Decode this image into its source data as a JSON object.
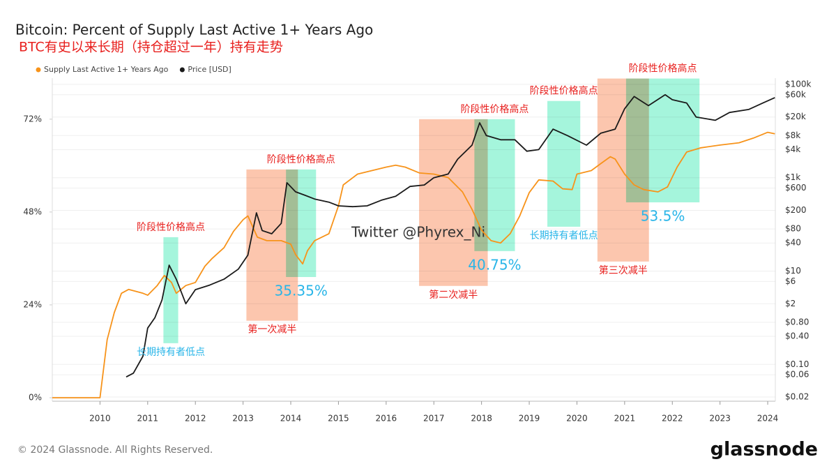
{
  "chart_data": {
    "type": "line",
    "title": "Bitcoin: Percent of Supply Last Active 1+ Years Ago",
    "subtitle": "BTC有史以来长期（持仓超过一年）持有走势",
    "legend": "top-left",
    "grid": true,
    "xlim": [
      2009,
      2024.16
    ],
    "xticks": [
      2010,
      2011,
      2012,
      2013,
      2014,
      2015,
      2016,
      2017,
      2018,
      2019,
      2020,
      2021,
      2022,
      2023,
      2024
    ],
    "ylim": [
      -0.9,
      82.6
    ],
    "yticks": [
      {
        "value": 0,
        "label": "0%"
      },
      {
        "value": 24,
        "label": "24%"
      },
      {
        "value": 48,
        "label": "48%"
      },
      {
        "value": 72,
        "label": "72%"
      }
    ],
    "y2lim": [
      0.0163,
      136000
    ],
    "y2log": true,
    "y2ticks": [
      {
        "value": 0.02,
        "label": "$0.02"
      },
      {
        "value": 0.06,
        "label": "$0.06"
      },
      {
        "value": 0.1,
        "label": "$0.10"
      },
      {
        "value": 0.4,
        "label": "$0.40"
      },
      {
        "value": 0.8,
        "label": "$0.80"
      },
      {
        "value": 2,
        "label": "$2"
      },
      {
        "value": 6,
        "label": "$6"
      },
      {
        "value": 10,
        "label": "$10"
      },
      {
        "value": 40,
        "label": "$40"
      },
      {
        "value": 80,
        "label": "$80"
      },
      {
        "value": 200,
        "label": "$200"
      },
      {
        "value": 600,
        "label": "$600"
      },
      {
        "value": 1000,
        "label": "$1k"
      },
      {
        "value": 4000,
        "label": "$4k"
      },
      {
        "value": 8000,
        "label": "$8k"
      },
      {
        "value": 20000,
        "label": "$20k"
      },
      {
        "value": 60000,
        "label": "$60k"
      },
      {
        "value": 100000,
        "label": "$100k"
      }
    ],
    "series": [
      {
        "name": "Supply Last Active 1+ Years Ago",
        "color": "#f7931a",
        "x": [
          2009,
          2010,
          2010.15,
          2010.3,
          2010.45,
          2010.6,
          2010.9,
          2011,
          2011.2,
          2011.35,
          2011.5,
          2011.6,
          2011.8,
          2012,
          2012.2,
          2012.35,
          2012.6,
          2012.8,
          2013,
          2013.1,
          2013.3,
          2013.5,
          2013.8,
          2014,
          2014.1,
          2014.25,
          2014.35,
          2014.5,
          2014.8,
          2015,
          2015.1,
          2015.4,
          2015.7,
          2016,
          2016.2,
          2016.4,
          2016.7,
          2017,
          2017.3,
          2017.6,
          2017.8,
          2018,
          2018.2,
          2018.4,
          2018.6,
          2018.8,
          2019,
          2019.2,
          2019.5,
          2019.7,
          2019.9,
          2020,
          2020.3,
          2020.5,
          2020.7,
          2020.8,
          2021,
          2021.2,
          2021.4,
          2021.7,
          2021.9,
          2022.1,
          2022.3,
          2022.6,
          2023,
          2023.4,
          2023.7,
          2024,
          2024.15
        ],
        "values": [
          0,
          0,
          15,
          22,
          27,
          28,
          27,
          26.5,
          29,
          31.6,
          29.8,
          27,
          29,
          29.8,
          34,
          36,
          38.8,
          43,
          46,
          47,
          41.5,
          40.6,
          40.6,
          39.7,
          37,
          34.6,
          38,
          40.6,
          42.4,
          49.6,
          55,
          57.8,
          58.7,
          59.6,
          60.1,
          59.6,
          58.1,
          57.8,
          56.9,
          53.2,
          48.7,
          43.3,
          40.6,
          40,
          42.4,
          47,
          53,
          56.3,
          56,
          54,
          53.8,
          57.8,
          58.7,
          60.5,
          62.3,
          61.7,
          57.8,
          55,
          53.8,
          53.2,
          54.5,
          59.6,
          63.5,
          64.6,
          65.3,
          65.9,
          67.1,
          68.6,
          68.2
        ]
      },
      {
        "name": "Price [USD]",
        "color": "#1a1a1a",
        "axis": "y2",
        "x": [
          2010.55,
          2010.7,
          2010.9,
          2011,
          2011.15,
          2011.3,
          2011.45,
          2011.6,
          2011.8,
          2012,
          2012.3,
          2012.6,
          2012.9,
          2013.1,
          2013.28,
          2013.4,
          2013.6,
          2013.8,
          2013.92,
          2014.1,
          2014.3,
          2014.5,
          2014.8,
          2015,
          2015.3,
          2015.6,
          2015.9,
          2016.2,
          2016.5,
          2016.8,
          2017,
          2017.3,
          2017.5,
          2017.8,
          2017.96,
          2018.1,
          2018.4,
          2018.7,
          2018.95,
          2019.2,
          2019.5,
          2019.8,
          2020.2,
          2020.5,
          2020.8,
          2021,
          2021.2,
          2021.5,
          2021.85,
          2022,
          2022.3,
          2022.5,
          2022.9,
          2023.2,
          2023.6,
          2023.9,
          2024.15
        ],
        "values": [
          0.054,
          0.065,
          0.15,
          0.6,
          1,
          2.4,
          13.4,
          6.7,
          2,
          4,
          5,
          6.7,
          11,
          22,
          177,
          74,
          63,
          105,
          780,
          500,
          420,
          350,
          300,
          250,
          240,
          250,
          330,
          400,
          650,
          700,
          1000,
          1200,
          2500,
          5000,
          15000,
          8000,
          6500,
          6500,
          3700,
          4000,
          11000,
          8000,
          5000,
          9000,
          11000,
          30000,
          55000,
          35000,
          60000,
          47000,
          40000,
          20000,
          17000,
          25000,
          29000,
          40000,
          52000
        ]
      }
    ],
    "regions": [
      {
        "x": [
          2011.33,
          2011.64
        ],
        "y": [
          14.1,
          41.5
        ],
        "color": "#a5f5dc",
        "label_above": "阶段性价格高点",
        "label_above_color": "#e8201e",
        "label_below": "长期持有者低点",
        "label_below_color": "#29b5e8"
      },
      {
        "x": [
          2013.07,
          2014.15
        ],
        "y": [
          19.9,
          59
        ],
        "color": "#fcc6ae",
        "label_below": "第一次减半",
        "label_below_color": "#e8201e"
      },
      {
        "x": [
          2013.9,
          2014.53
        ],
        "y": [
          31.2,
          59
        ],
        "color": "#a5f5dc",
        "label_above": "阶段性价格高点",
        "label_above_color": "#e8201e",
        "label_below": "35.35%",
        "label_below_color": "#29b5e8"
      },
      {
        "x": [
          2016.69,
          2018.13
        ],
        "y": [
          28.9,
          72
        ],
        "color": "#fcc6ae",
        "label_below": "第二次减半",
        "label_below_color": "#e8201e"
      },
      {
        "x": [
          2017.85,
          2018.7
        ],
        "y": [
          37.9,
          72
        ],
        "color": "#a5f5dc",
        "label_above": "阶段性价格高点",
        "label_above_color": "#e8201e",
        "label_below": "40.75%",
        "label_below_color": "#29b5e8"
      },
      {
        "x": [
          2019.38,
          2020.07
        ],
        "y": [
          44.2,
          76.7
        ],
        "color": "#a5f5dc",
        "label_above": "阶段性价格高点",
        "label_above_color": "#e8201e",
        "label_below": "长期持有者低点",
        "label_below_color": "#29b5e8"
      },
      {
        "x": [
          2020.43,
          2021.51
        ],
        "y": [
          35.2,
          82.5
        ],
        "color": "#fcc6ae",
        "label_below": "第三次减半",
        "label_below_color": "#e8201e"
      },
      {
        "x": [
          2021.03,
          2022.57
        ],
        "y": [
          50.5,
          82.5
        ],
        "color": "#a5f5dc",
        "label_above": "阶段性价格高点",
        "label_above_color": "#e8201e",
        "label_below": "53.5%",
        "label_below_color": "#29b5e8"
      }
    ],
    "watermark": {
      "text": "Twitter @Phyrex_Ni",
      "color": "#29b5e8"
    }
  },
  "footer": "© 2024 Glassnode. All Rights Reserved.",
  "brand": "glassnode"
}
